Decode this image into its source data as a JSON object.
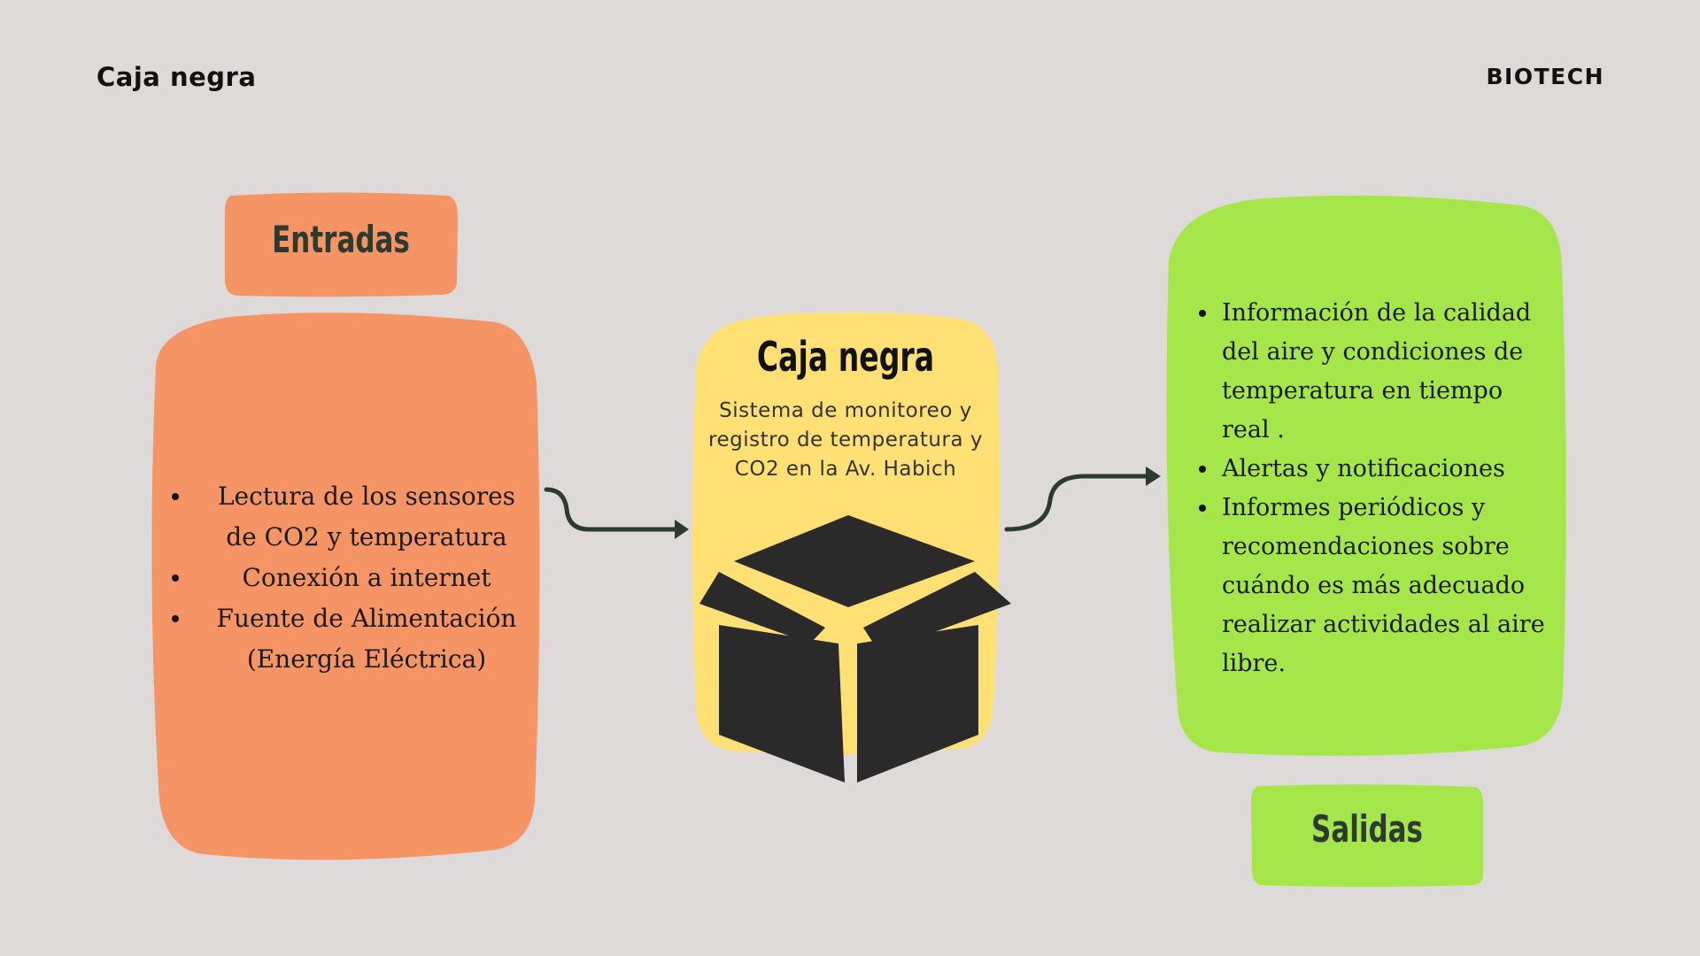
{
  "header": {
    "title": "Caja negra",
    "brand": "BIOTECH"
  },
  "inputs": {
    "label": "Entradas",
    "items": [
      "Lectura de los sensores de CO2 y temperatura",
      "Conexión a internet",
      "Fuente de Alimentación (Energía Eléctrica)"
    ]
  },
  "blackbox": {
    "title": "Caja negra",
    "description": "Sistema de monitoreo y registro de temperatura y CO2 en la Av. Habich",
    "icon": "open-box-icon"
  },
  "outputs": {
    "label": "Salidas",
    "items": [
      "Información de la calidad del aire y condiciones de temperatura en tiempo real .",
      "Alertas y notificaciones",
      "Informes periódicos y recomendaciones sobre cuándo es más adecuado realizar actividades al aire libre."
    ]
  },
  "colors": {
    "background": "#dedad9",
    "inputs": "#f59565",
    "blackbox": "#ffe074",
    "outputs": "#a5e64b",
    "box": "#2a2a2a",
    "arrow": "#2d3a30"
  }
}
